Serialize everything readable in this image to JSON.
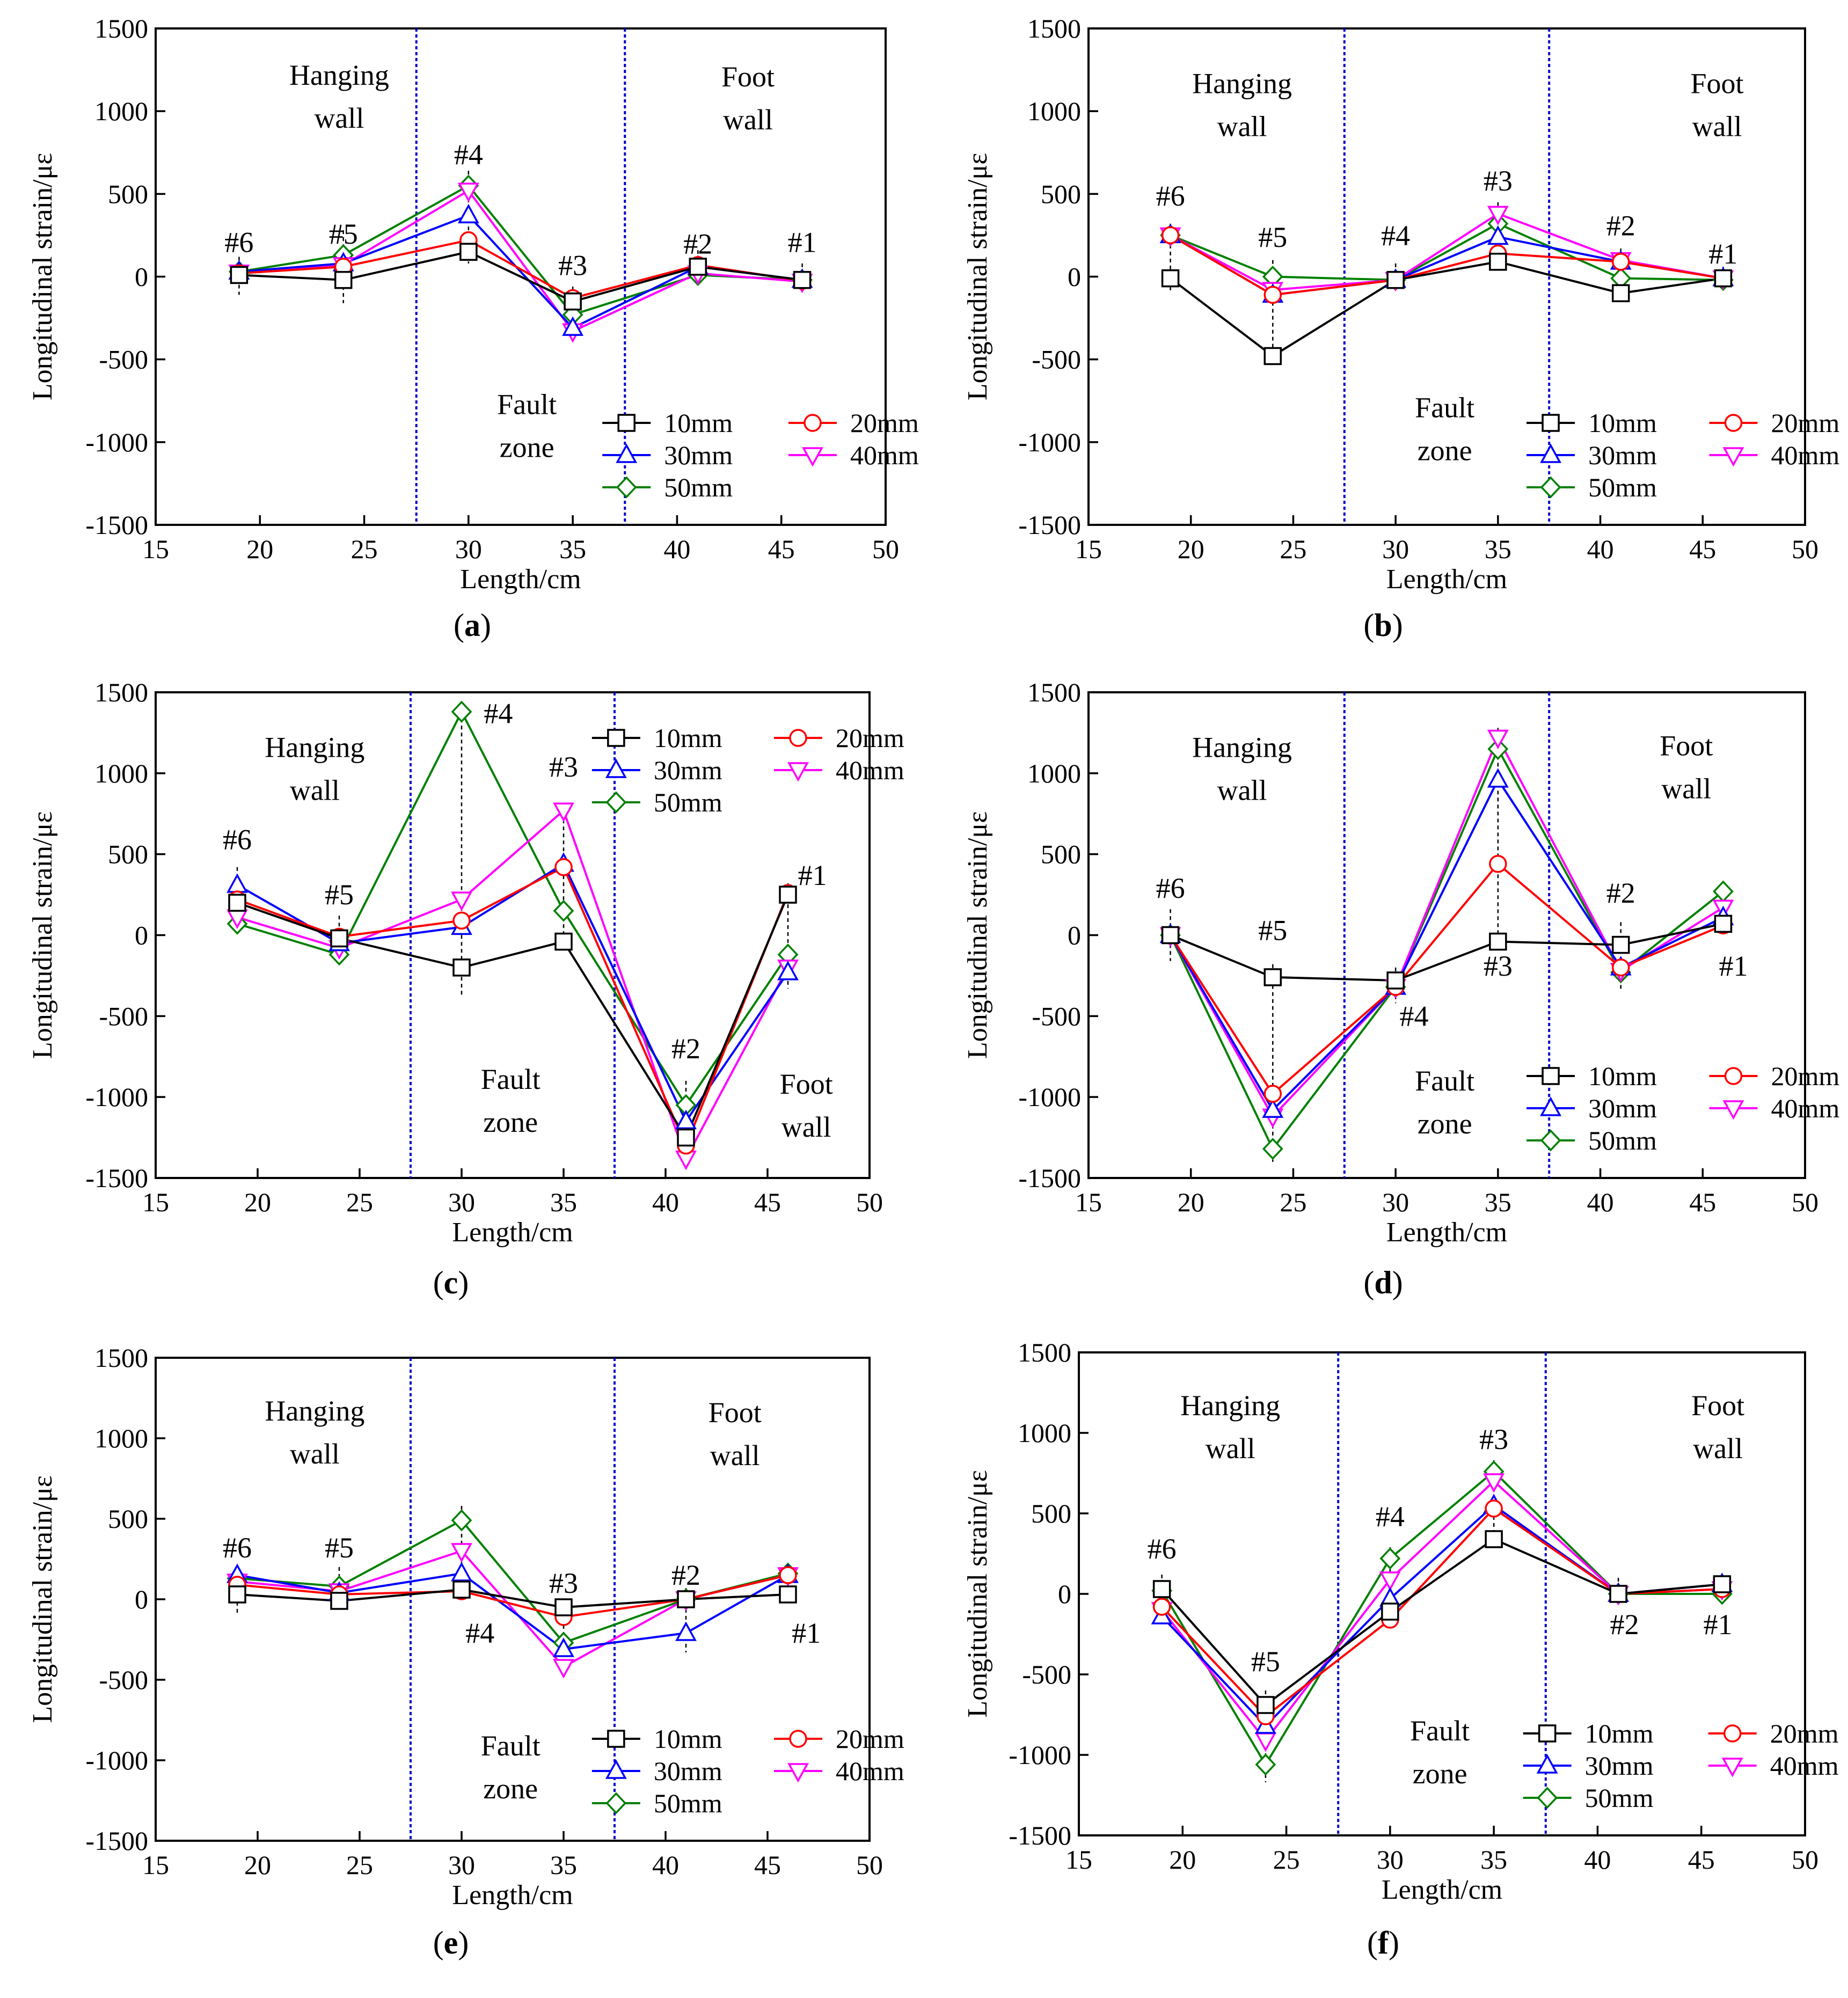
{
  "figure": {
    "legend_labels": [
      "10mm",
      "20mm",
      "30mm",
      "40mm",
      "50mm"
    ],
    "series_colors": [
      "#000000",
      "#ff0000",
      "#0000ff",
      "#ff00ff",
      "#008000"
    ],
    "series_markers": [
      "square",
      "circle",
      "triangle-up",
      "triangle-down",
      "diamond"
    ],
    "fault_line_color": "#0000cc",
    "sensor_line_color": "#000000"
  },
  "chart_data": [
    {
      "panel": "(a)",
      "type": "line",
      "xlabel": "Length/cm",
      "ylabel": "Longitudinal strain/με",
      "xlim": [
        15,
        50
      ],
      "ylim": [
        -1500,
        1500
      ],
      "xticks": [
        15,
        20,
        25,
        30,
        35,
        40,
        45,
        50
      ],
      "yticks": [
        -1500,
        -1000,
        -500,
        0,
        500,
        1000,
        1500
      ],
      "x": [
        19,
        24,
        30,
        35,
        41,
        46
      ],
      "fault_boundaries": [
        27.5,
        37.5
      ],
      "sensor_labels": [
        {
          "label": "#6",
          "x": 19,
          "y": 150
        },
        {
          "label": "#5",
          "x": 24,
          "y": 200
        },
        {
          "label": "#4",
          "x": 30,
          "y": 680
        },
        {
          "label": "#3",
          "x": 35,
          "y": 10
        },
        {
          "label": "#2",
          "x": 41,
          "y": 140
        },
        {
          "label": "#1",
          "x": 46,
          "y": 150
        }
      ],
      "sensor_ranges": [
        {
          "x": 19,
          "lo": -110,
          "hi": 120
        },
        {
          "x": 24,
          "lo": -160,
          "hi": 280
        },
        {
          "x": 30,
          "lo": 80,
          "hi": 640
        },
        {
          "x": 35,
          "lo": -390,
          "hi": -60
        },
        {
          "x": 41,
          "lo": -10,
          "hi": 160
        },
        {
          "x": 46,
          "lo": -90,
          "hi": 80
        }
      ],
      "annotations": [
        {
          "lines": [
            "Hanging",
            "wall"
          ],
          "x": 23.8,
          "y": 1160
        },
        {
          "lines": [
            "Foot",
            "wall"
          ],
          "x": 43.4,
          "y": 1150
        },
        {
          "lines": [
            "Fault",
            "zone"
          ],
          "x": 32.8,
          "y": -830
        }
      ],
      "legend": {
        "position": "bottom-right",
        "order": [
          "10mm",
          "20mm",
          "30mm",
          "40mm",
          "50mm"
        ]
      },
      "series": [
        {
          "name": "10mm",
          "values": [
            10,
            -20,
            150,
            -150,
            60,
            -20
          ]
        },
        {
          "name": "20mm",
          "values": [
            20,
            60,
            220,
            -130,
            70,
            -25
          ]
        },
        {
          "name": "30mm",
          "values": [
            30,
            80,
            370,
            -310,
            60,
            -20
          ]
        },
        {
          "name": "40mm",
          "values": [
            25,
            70,
            520,
            -330,
            20,
            -30
          ]
        },
        {
          "name": "50mm",
          "values": [
            30,
            130,
            550,
            -230,
            10,
            -20
          ]
        }
      ]
    },
    {
      "panel": "(b)",
      "type": "line",
      "xlabel": "Length/cm",
      "ylabel": "Longitudinal strain/με",
      "xlim": [
        15,
        50
      ],
      "ylim": [
        -1500,
        1500
      ],
      "xticks": [
        15,
        20,
        25,
        30,
        35,
        40,
        45,
        50
      ],
      "yticks": [
        -1500,
        -1000,
        -500,
        0,
        500,
        1000,
        1500
      ],
      "x": [
        19,
        24,
        30,
        35,
        41,
        46
      ],
      "fault_boundaries": [
        27.5,
        37.5
      ],
      "sensor_labels": [
        {
          "label": "#6",
          "x": 19,
          "y": 430
        },
        {
          "label": "#5",
          "x": 24,
          "y": 180
        },
        {
          "label": "#4",
          "x": 30,
          "y": 190
        },
        {
          "label": "#3",
          "x": 35,
          "y": 520
        },
        {
          "label": "#2",
          "x": 41,
          "y": 250
        },
        {
          "label": "#1",
          "x": 46,
          "y": 80
        }
      ],
      "sensor_ranges": [
        {
          "x": 19,
          "lo": -100,
          "hi": 320
        },
        {
          "x": 24,
          "lo": -520,
          "hi": 100
        },
        {
          "x": 30,
          "lo": -80,
          "hi": 80
        },
        {
          "x": 35,
          "lo": 30,
          "hi": 450
        },
        {
          "x": 41,
          "lo": -130,
          "hi": 170
        },
        {
          "x": 46,
          "lo": -60,
          "hi": 60
        }
      ],
      "annotations": [
        {
          "lines": [
            "Hanging",
            "wall"
          ],
          "x": 22.5,
          "y": 1110
        },
        {
          "lines": [
            "Foot",
            "wall"
          ],
          "x": 45.7,
          "y": 1110
        },
        {
          "lines": [
            "Fault",
            "zone"
          ],
          "x": 32.4,
          "y": -850
        }
      ],
      "legend": {
        "position": "bottom-right",
        "order": [
          "10mm",
          "20mm",
          "30mm",
          "40mm",
          "50mm"
        ]
      },
      "series": [
        {
          "name": "10mm",
          "values": [
            -10,
            -480,
            -20,
            90,
            -100,
            -10
          ]
        },
        {
          "name": "20mm",
          "values": [
            250,
            -110,
            -20,
            140,
            90,
            -10
          ]
        },
        {
          "name": "30mm",
          "values": [
            250,
            -110,
            -20,
            240,
            90,
            -10
          ]
        },
        {
          "name": "40mm",
          "values": [
            250,
            -80,
            -20,
            380,
            100,
            -10
          ]
        },
        {
          "name": "50mm",
          "values": [
            250,
            0,
            -20,
            320,
            -10,
            -20
          ]
        }
      ]
    },
    {
      "panel": "(c)",
      "type": "line",
      "xlabel": "Length/cm",
      "ylabel": "Longitudinal strain/με",
      "xlim": [
        15,
        50
      ],
      "ylim": [
        -1500,
        1500
      ],
      "xticks": [
        15,
        20,
        25,
        30,
        35,
        40,
        45,
        50
      ],
      "yticks": [
        -1500,
        -1000,
        -500,
        0,
        500,
        1000,
        1500
      ],
      "x": [
        19,
        24,
        30,
        35,
        41,
        46
      ],
      "fault_boundaries": [
        27.5,
        37.5
      ],
      "sensor_labels": [
        {
          "label": "#6",
          "x": 19,
          "y": 530
        },
        {
          "label": "#5",
          "x": 24,
          "y": 190
        },
        {
          "label": "#4",
          "x": 31.8,
          "y": 1310
        },
        {
          "label": "#3",
          "x": 35,
          "y": 980
        },
        {
          "label": "#2",
          "x": 41,
          "y": -760
        },
        {
          "label": "#1",
          "x": 47.2,
          "y": 310
        }
      ],
      "sensor_ranges": [
        {
          "x": 19,
          "lo": 40,
          "hi": 420
        },
        {
          "x": 24,
          "lo": -160,
          "hi": 120
        },
        {
          "x": 30,
          "lo": -380,
          "hi": 1380
        },
        {
          "x": 35,
          "lo": -60,
          "hi": 800
        },
        {
          "x": 41,
          "lo": -1400,
          "hi": -900
        },
        {
          "x": 46,
          "lo": -330,
          "hi": 320
        }
      ],
      "annotations": [
        {
          "lines": [
            "Hanging",
            "wall"
          ],
          "x": 22.8,
          "y": 1100
        },
        {
          "lines": [
            "Fault",
            "zone"
          ],
          "x": 32.4,
          "y": -950
        },
        {
          "lines": [
            "Foot",
            "wall"
          ],
          "x": 46.9,
          "y": -980
        }
      ],
      "legend": {
        "position": "top-right",
        "order": [
          "10mm",
          "20mm",
          "30mm",
          "40mm",
          "50mm"
        ]
      },
      "series": [
        {
          "name": "10mm",
          "values": [
            200,
            -20,
            -200,
            -40,
            -1250,
            250
          ]
        },
        {
          "name": "20mm",
          "values": [
            220,
            -10,
            90,
            420,
            -1300,
            260
          ]
        },
        {
          "name": "30mm",
          "values": [
            310,
            -50,
            50,
            440,
            -1150,
            -230
          ]
        },
        {
          "name": "40mm",
          "values": [
            110,
            -80,
            220,
            770,
            -1380,
            -200
          ]
        },
        {
          "name": "50mm",
          "values": [
            70,
            -120,
            1380,
            150,
            -1050,
            -120
          ]
        }
      ]
    },
    {
      "panel": "(d)",
      "type": "line",
      "xlabel": "Length/cm",
      "ylabel": "Longitudinal strain/με",
      "xlim": [
        15,
        50
      ],
      "ylim": [
        -1500,
        1500
      ],
      "xticks": [
        15,
        20,
        25,
        30,
        35,
        40,
        45,
        50
      ],
      "yticks": [
        -1500,
        -1000,
        -500,
        0,
        500,
        1000,
        1500
      ],
      "x": [
        19,
        24,
        30,
        35,
        41,
        46
      ],
      "fault_boundaries": [
        27.5,
        37.5
      ],
      "sensor_labels": [
        {
          "label": "#6",
          "x": 19,
          "y": 230
        },
        {
          "label": "#5",
          "x": 24,
          "y": -30
        },
        {
          "label": "#4",
          "x": 30.9,
          "y": -560
        },
        {
          "label": "#3",
          "x": 35,
          "y": -250
        },
        {
          "label": "#2",
          "x": 41,
          "y": 200
        },
        {
          "label": "#1",
          "x": 46.5,
          "y": -250
        }
      ],
      "sensor_ranges": [
        {
          "x": 19,
          "lo": -160,
          "hi": 160
        },
        {
          "x": 24,
          "lo": -1400,
          "hi": -180
        },
        {
          "x": 30,
          "lo": -420,
          "hi": -200
        },
        {
          "x": 35,
          "lo": -60,
          "hi": 1280
        },
        {
          "x": 41,
          "lo": -340,
          "hi": 80
        },
        {
          "x": 46,
          "lo": 30,
          "hi": 300
        }
      ],
      "annotations": [
        {
          "lines": [
            "Hanging",
            "wall"
          ],
          "x": 22.5,
          "y": 1100
        },
        {
          "lines": [
            "Foot",
            "wall"
          ],
          "x": 44.2,
          "y": 1110
        },
        {
          "lines": [
            "Fault",
            "zone"
          ],
          "x": 32.4,
          "y": -960
        }
      ],
      "legend": {
        "position": "bottom-right",
        "order": [
          "10mm",
          "20mm",
          "30mm",
          "40mm",
          "50mm"
        ]
      },
      "series": [
        {
          "name": "10mm",
          "values": [
            0,
            -260,
            -280,
            -40,
            -60,
            70
          ]
        },
        {
          "name": "20mm",
          "values": [
            0,
            -980,
            -320,
            440,
            -200,
            60
          ]
        },
        {
          "name": "30mm",
          "values": [
            0,
            -1080,
            -320,
            960,
            -200,
            110
          ]
        },
        {
          "name": "40mm",
          "values": [
            0,
            -1120,
            -320,
            1220,
            -220,
            170
          ]
        },
        {
          "name": "50mm",
          "values": [
            0,
            -1320,
            -320,
            1150,
            -230,
            270
          ]
        }
      ]
    },
    {
      "panel": "(e)",
      "type": "line",
      "xlabel": "Length/cm",
      "ylabel": "Longitudinal strain/με",
      "xlim": [
        15,
        50
      ],
      "ylim": [
        -1500,
        1500
      ],
      "xticks": [
        15,
        20,
        25,
        30,
        35,
        40,
        45,
        50
      ],
      "yticks": [
        -1500,
        -1000,
        -500,
        0,
        500,
        1000,
        1500
      ],
      "x": [
        19,
        24,
        30,
        35,
        41,
        46
      ],
      "fault_boundaries": [
        27.5,
        37.5
      ],
      "sensor_labels": [
        {
          "label": "#6",
          "x": 19,
          "y": 260
        },
        {
          "label": "#5",
          "x": 24,
          "y": 260
        },
        {
          "label": "#4",
          "x": 30.9,
          "y": -270
        },
        {
          "label": "#3",
          "x": 35,
          "y": 40
        },
        {
          "label": "#2",
          "x": 41,
          "y": 90
        },
        {
          "label": "#1",
          "x": 46.9,
          "y": -270
        }
      ],
      "sensor_ranges": [
        {
          "x": 19,
          "lo": -100,
          "hi": 200
        },
        {
          "x": 24,
          "lo": -60,
          "hi": 200
        },
        {
          "x": 30,
          "lo": 20,
          "hi": 580
        },
        {
          "x": 35,
          "lo": -460,
          "hi": -30
        },
        {
          "x": 41,
          "lo": -330,
          "hi": 70
        },
        {
          "x": 46,
          "lo": 0,
          "hi": 200
        }
      ],
      "annotations": [
        {
          "lines": [
            "Hanging",
            "wall"
          ],
          "x": 22.8,
          "y": 1110
        },
        {
          "lines": [
            "Foot",
            "wall"
          ],
          "x": 43.4,
          "y": 1100
        },
        {
          "lines": [
            "Fault",
            "zone"
          ],
          "x": 32.4,
          "y": -970
        }
      ],
      "legend": {
        "position": "bottom-right",
        "order": [
          "10mm",
          "20mm",
          "30mm",
          "40mm",
          "50mm"
        ]
      },
      "series": [
        {
          "name": "10mm",
          "values": [
            30,
            -10,
            60,
            -50,
            0,
            30
          ]
        },
        {
          "name": "20mm",
          "values": [
            90,
            30,
            50,
            -110,
            0,
            150
          ]
        },
        {
          "name": "30mm",
          "values": [
            150,
            40,
            160,
            -310,
            -210,
            150
          ]
        },
        {
          "name": "40mm",
          "values": [
            110,
            50,
            300,
            -420,
            0,
            150
          ]
        },
        {
          "name": "50mm",
          "values": [
            130,
            80,
            490,
            -270,
            0,
            160
          ]
        }
      ]
    },
    {
      "panel": "(f)",
      "type": "line",
      "xlabel": "Length/cm",
      "ylabel": "Longitudinal strain/με",
      "xlim": [
        15,
        50
      ],
      "ylim": [
        -1500,
        1500
      ],
      "xticks": [
        15,
        20,
        25,
        30,
        35,
        40,
        45,
        50
      ],
      "yticks": [
        -1500,
        -1000,
        -500,
        0,
        500,
        1000,
        1500
      ],
      "x": [
        19,
        24,
        30,
        35,
        41,
        46
      ],
      "fault_boundaries": [
        27.5,
        37.5
      ],
      "sensor_labels": [
        {
          "label": "#6",
          "x": 19,
          "y": 220
        },
        {
          "label": "#5",
          "x": 24,
          "y": -480
        },
        {
          "label": "#4",
          "x": 30,
          "y": 420
        },
        {
          "label": "#3",
          "x": 35,
          "y": 900
        },
        {
          "label": "#2",
          "x": 41.3,
          "y": -250
        },
        {
          "label": "#1",
          "x": 45.8,
          "y": -250
        }
      ],
      "sensor_ranges": [
        {
          "x": 19,
          "lo": -180,
          "hi": 120
        },
        {
          "x": 24,
          "lo": -1170,
          "hi": -600
        },
        {
          "x": 30,
          "lo": -180,
          "hi": 290
        },
        {
          "x": 35,
          "lo": 300,
          "hi": 830
        },
        {
          "x": 41,
          "lo": -40,
          "hi": 100
        },
        {
          "x": 46,
          "lo": -30,
          "hi": 110
        }
      ],
      "annotations": [
        {
          "lines": [
            "Hanging",
            "wall"
          ],
          "x": 22.3,
          "y": 1110
        },
        {
          "lines": [
            "Foot",
            "wall"
          ],
          "x": 45.8,
          "y": 1110
        },
        {
          "lines": [
            "Fault",
            "zone"
          ],
          "x": 32.4,
          "y": -910
        }
      ],
      "legend": {
        "position": "bottom-right",
        "order": [
          "10mm",
          "20mm",
          "30mm",
          "40mm",
          "50mm"
        ]
      },
      "series": [
        {
          "name": "10mm",
          "values": [
            30,
            -690,
            -110,
            340,
            0,
            60
          ]
        },
        {
          "name": "20mm",
          "values": [
            -80,
            -760,
            -160,
            530,
            0,
            30
          ]
        },
        {
          "name": "30mm",
          "values": [
            -140,
            -820,
            -30,
            550,
            0,
            60
          ]
        },
        {
          "name": "40mm",
          "values": [
            -100,
            -910,
            90,
            700,
            0,
            30
          ]
        },
        {
          "name": "50mm",
          "values": [
            20,
            -1060,
            220,
            760,
            0,
            0
          ]
        }
      ]
    }
  ]
}
